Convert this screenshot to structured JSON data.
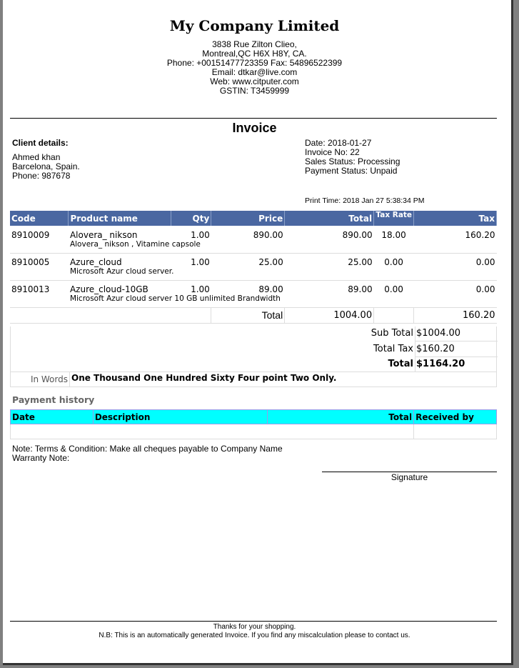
{
  "company": {
    "name": "My Company Limited",
    "address1": "3838 Rue Zilton Clieo,",
    "address2": "Montreal,QC H6X H8Y, CA.",
    "phone_fax": "Phone: +00151477723359 Fax: 54896522399",
    "email": "Email: dtkar@live.com",
    "web": "Web: www.citputer.com",
    "gstin": "GSTIN: T3459999"
  },
  "title": "Invoice",
  "client": {
    "heading": "Client details:",
    "name": "Ahmed khan",
    "address": "Barcelona, Spain.",
    "phone": "Phone: 987678"
  },
  "meta": {
    "date": "Date: 2018-01-27",
    "invoice_no": "Invoice No: 22",
    "sales_status": "Sales Status: Processing",
    "payment_status": "Payment Status: Unpaid",
    "print_time": "Print Time: 2018 Jan 27 5:38:34 PM"
  },
  "items": {
    "headers": [
      "Code",
      "Product name",
      "Qty",
      "Price",
      "Total",
      "Tax Rate",
      "Tax"
    ],
    "rows": [
      {
        "code": "8910009",
        "name": "Alovera_ nikson",
        "qty": "1.00",
        "price": "890.00",
        "total": "890.00",
        "rate": "18.00",
        "tax": "160.20",
        "desc": "Alovera_ nikson , Vitamine capsole"
      },
      {
        "code": "8910005",
        "name": "Azure_cloud",
        "qty": "1.00",
        "price": "25.00",
        "total": "25.00",
        "rate": "0.00",
        "tax": "0.00",
        "desc": "Microsoft Azur cloud server."
      },
      {
        "code": "8910013",
        "name": "Azure_cloud-10GB",
        "qty": "1.00",
        "price": "89.00",
        "total": "89.00",
        "rate": "0.00",
        "tax": "0.00",
        "desc": "Microsoft Azur cloud server 10 GB unlimited Brandwidth"
      }
    ],
    "total_label": "Total",
    "total_value": "1004.00",
    "total_tax": "160.20"
  },
  "summary": {
    "sub_total_label": "Sub Total",
    "sub_total": "$1004.00",
    "total_tax_label": "Total Tax",
    "total_tax": "$160.20",
    "total_label": "Total",
    "total": "$1164.20",
    "in_words_label": "In Words",
    "in_words": "One Thousand One Hundred Sixty Four point Two  Only."
  },
  "payment": {
    "heading": "Payment history",
    "headers": [
      "Date",
      "Description",
      "Total",
      "Received by"
    ]
  },
  "notes": {
    "terms": "Note: Terms & Condition: Make all cheques payable to Company Name",
    "warranty": "Warranty Note:"
  },
  "signature": "Signature",
  "footer": {
    "thanks": "Thanks for your shopping.",
    "nb": "N.B: This is an automatically generated Invoice. If you find any miscalculation please to contact us."
  }
}
